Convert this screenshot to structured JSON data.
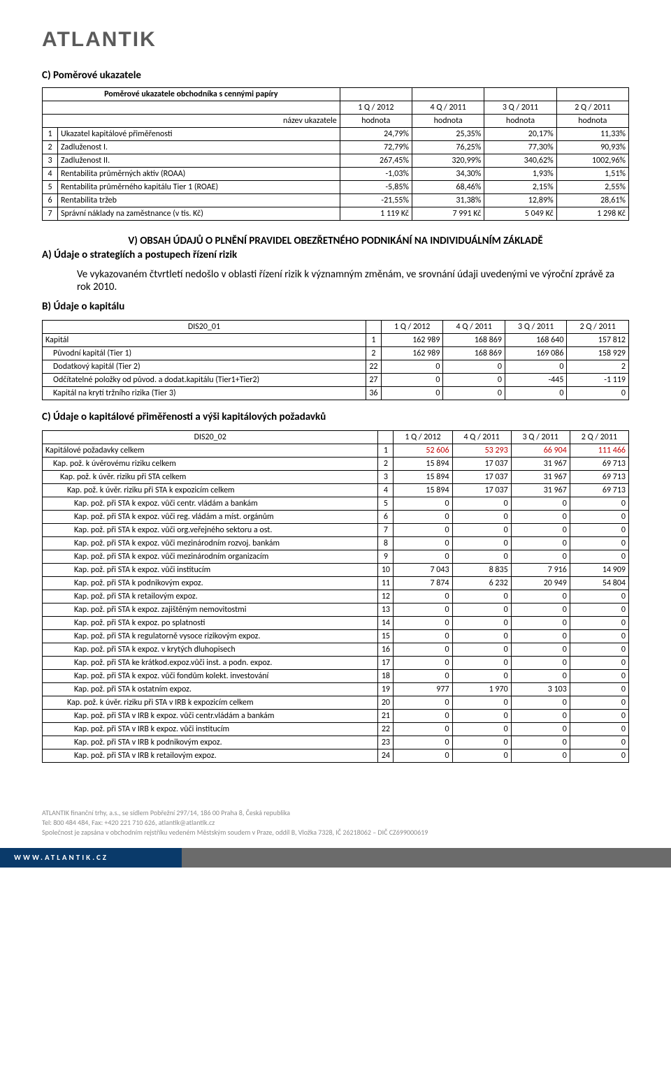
{
  "logo": "ATLANTIK",
  "section_c_title": "C)  Poměrové ukazatele",
  "table1": {
    "title": "Poměrové ukazatele obchodníka s cennými papíry",
    "header": [
      "",
      "název ukazatele",
      "1 Q / 2012",
      "4 Q / 2011",
      "3 Q / 2011",
      "2 Q / 2011"
    ],
    "subheader": [
      "",
      "",
      "hodnota",
      "hodnota",
      "hodnota",
      "hodnota"
    ],
    "rows": [
      {
        "idx": "1",
        "label": "Ukazatel kapitálové přiměřenosti",
        "v": [
          "24,79%",
          "25,35%",
          "20,17%",
          "11,33%"
        ]
      },
      {
        "idx": "2",
        "label": "Zadluženost I.",
        "v": [
          "72,79%",
          "76,25%",
          "77,30%",
          "90,93%"
        ]
      },
      {
        "idx": "3",
        "label": "Zadluženost II.",
        "v": [
          "267,45%",
          "320,99%",
          "340,62%",
          "1002,96%"
        ]
      },
      {
        "idx": "4",
        "label": "Rentabilita průměrných aktiv (ROAA)",
        "v": [
          "-1,03%",
          "34,30%",
          "1,93%",
          "1,51%"
        ]
      },
      {
        "idx": "5",
        "label": "Rentabilita průměrného kapitálu Tier 1 (ROAE)",
        "v": [
          "-5,85%",
          "68,46%",
          "2,15%",
          "2,55%"
        ]
      },
      {
        "idx": "6",
        "label": "Rentabilita tržeb",
        "v": [
          "-21,55%",
          "31,38%",
          "12,89%",
          "28,61%"
        ]
      },
      {
        "idx": "7",
        "label": "Správní náklady na zaměstnance (v tis. Kč)",
        "v": [
          "1 119 Kč",
          "7 991 Kč",
          "5 049 Kč",
          "1 298 Kč"
        ]
      }
    ]
  },
  "section_v_title": "V)     OBSAH ÚDAJŮ O PLNĚNÍ PRAVIDEL OBEZŘETNÉHO PODNIKÁNÍ NA INDIVIDUÁLNÍM ZÁKLADĚ",
  "section_a_title": "A)  Údaje o strategiích a postupech řízení rizik",
  "para": "Ve vykazovaném čtvrtletí nedošlo v oblasti řízení rizik k významným změnám, ve srovnání údaji uvedenými ve výroční zprávě za rok 2010.",
  "section_b_title": "B)  Údaje o kapitálu",
  "table2": {
    "code": "DIS20_01",
    "header": [
      "1 Q / 2012",
      "4 Q / 2011",
      "3 Q / 2011",
      "2 Q / 2011"
    ],
    "rows": [
      {
        "label": "Kapitál",
        "pad": 0,
        "idx": "1",
        "v": [
          "162 989",
          "168 869",
          "168 640",
          "157 812"
        ]
      },
      {
        "label": "Původní kapitál (Tier 1)",
        "pad": 1,
        "idx": "2",
        "v": [
          "162 989",
          "168 869",
          "169 086",
          "158 929"
        ]
      },
      {
        "label": "Dodatkový kapitál (Tier 2)",
        "pad": 1,
        "idx": "22",
        "v": [
          "0",
          "0",
          "0",
          "2"
        ]
      },
      {
        "label": "Odčítatelné položky od původ. a dodat.kapitálu (Tier1+Tier2)",
        "pad": 1,
        "idx": "27",
        "v": [
          "0",
          "0",
          "-445",
          "-1 119"
        ]
      },
      {
        "label": "Kapitál na krytí tržního rizika (Tier 3)",
        "pad": 1,
        "idx": "36",
        "v": [
          "0",
          "0",
          "0",
          "0"
        ]
      }
    ]
  },
  "section_c2_title": "C)  Údaje o kapitálové přiměřenosti a výši kapitálových požadavků",
  "table3": {
    "code": "DIS20_02",
    "header": [
      "1 Q / 2012",
      "4 Q / 2011",
      "3 Q / 2011",
      "2 Q / 2011"
    ],
    "rows": [
      {
        "label": "Kapitálové požadavky celkem",
        "pad": 0,
        "idx": "1",
        "v": [
          "52 606",
          "53 293",
          "66 904",
          "111 466"
        ],
        "red": true
      },
      {
        "label": "Kap. pož. k úvěrovému riziku celkem",
        "pad": 1,
        "idx": "2",
        "v": [
          "15 894",
          "17 037",
          "31 967",
          "69 713"
        ]
      },
      {
        "label": "Kap. pož. k úvěr. riziku při STA celkem",
        "pad": 2,
        "idx": "3",
        "v": [
          "15 894",
          "17 037",
          "31 967",
          "69 713"
        ]
      },
      {
        "label": "Kap. pož. k úvěr. riziku při STA k expozicím celkem",
        "pad": 3,
        "idx": "4",
        "v": [
          "15 894",
          "17 037",
          "31 967",
          "69 713"
        ]
      },
      {
        "label": "Kap. pož. při STA k expoz. vůči centr. vládám a bankám",
        "pad": 4,
        "idx": "5",
        "v": [
          "0",
          "0",
          "0",
          "0"
        ]
      },
      {
        "label": "Kap. pož. při STA k expoz. vůči reg. vládám a míst. orgánům",
        "pad": 4,
        "idx": "6",
        "v": [
          "0",
          "0",
          "0",
          "0"
        ]
      },
      {
        "label": "Kap. pož. při STA k expoz. vůči org.veřejného sektoru a ost.",
        "pad": 4,
        "idx": "7",
        "v": [
          "0",
          "0",
          "0",
          "0"
        ]
      },
      {
        "label": "Kap. pož. při STA k expoz. vůči mezinárodním rozvoj. bankám",
        "pad": 4,
        "idx": "8",
        "v": [
          "0",
          "0",
          "0",
          "0"
        ]
      },
      {
        "label": "Kap. pož. při STA k expoz. vůči mezinárodním organizacím",
        "pad": 4,
        "idx": "9",
        "v": [
          "0",
          "0",
          "0",
          "0"
        ]
      },
      {
        "label": "Kap. pož. při STA k expoz. vůči institucím",
        "pad": 4,
        "idx": "10",
        "v": [
          "7 043",
          "8 835",
          "7 916",
          "14 909"
        ]
      },
      {
        "label": "Kap. pož. při STA k podnikovým expoz.",
        "pad": 4,
        "idx": "11",
        "v": [
          "7 874",
          "6 232",
          "20 949",
          "54 804"
        ]
      },
      {
        "label": "Kap. pož. při STA k retailovým expoz.",
        "pad": 4,
        "idx": "12",
        "v": [
          "0",
          "0",
          "0",
          "0"
        ]
      },
      {
        "label": "Kap. pož. při STA k expoz. zajištěným nemovitostmi",
        "pad": 4,
        "idx": "13",
        "v": [
          "0",
          "0",
          "0",
          "0"
        ]
      },
      {
        "label": "Kap. pož. při STA k expoz. po splatnosti",
        "pad": 4,
        "idx": "14",
        "v": [
          "0",
          "0",
          "0",
          "0"
        ]
      },
      {
        "label": "Kap. pož. při STA k regulatorně vysoce rizikovým expoz.",
        "pad": 4,
        "idx": "15",
        "v": [
          "0",
          "0",
          "0",
          "0"
        ]
      },
      {
        "label": "Kap. pož. při STA k expoz. v krytých dluhopisech",
        "pad": 4,
        "idx": "16",
        "v": [
          "0",
          "0",
          "0",
          "0"
        ]
      },
      {
        "label": "Kap. pož. při STA ke krátkod.expoz.vůči inst. a podn. expoz.",
        "pad": 4,
        "idx": "17",
        "v": [
          "0",
          "0",
          "0",
          "0"
        ]
      },
      {
        "label": "Kap. pož. při STA k expoz. vůči fondům kolekt. investování",
        "pad": 4,
        "idx": "18",
        "v": [
          "0",
          "0",
          "0",
          "0"
        ]
      },
      {
        "label": "Kap. pož. při STA k ostatním expoz.",
        "pad": 4,
        "idx": "19",
        "v": [
          "977",
          "1 970",
          "3 103",
          "0"
        ]
      },
      {
        "label": "Kap. pož. k úvěr. riziku při STA v IRB k expozicím celkem",
        "pad": 3,
        "idx": "20",
        "v": [
          "0",
          "0",
          "0",
          "0"
        ]
      },
      {
        "label": "Kap. pož. při STA v IRB k expoz. vůči centr.vládám a bankám",
        "pad": 4,
        "idx": "21",
        "v": [
          "0",
          "0",
          "0",
          "0"
        ]
      },
      {
        "label": "Kap. pož. při STA v IRB k expoz. vůči institucím",
        "pad": 4,
        "idx": "22",
        "v": [
          "0",
          "0",
          "0",
          "0"
        ]
      },
      {
        "label": "Kap. pož. při STA v IRB k podnikovým expoz.",
        "pad": 4,
        "idx": "23",
        "v": [
          "0",
          "0",
          "0",
          "0"
        ]
      },
      {
        "label": "Kap. pož. při STA v IRB k retailovým expoz.",
        "pad": 4,
        "idx": "24",
        "v": [
          "0",
          "0",
          "0",
          "0"
        ]
      }
    ]
  },
  "footer": {
    "line1": "ATLANTIK finanční trhy, a.s., se sídlem Pobřežní 297/14, 186 00 Praha 8, Česká republika",
    "line2": "Tel: 800 484 484, Fax: +420 221 710 626, atlantik@atlantik.cz",
    "line3": "Společnost je zapsána v obchodním rejstříku vedeném Městským soudem v Praze, oddíl B, Vložka 7328, IČ 26218062 – DIČ CZ699000619",
    "url": "WWW.ATLANTIK.CZ"
  }
}
